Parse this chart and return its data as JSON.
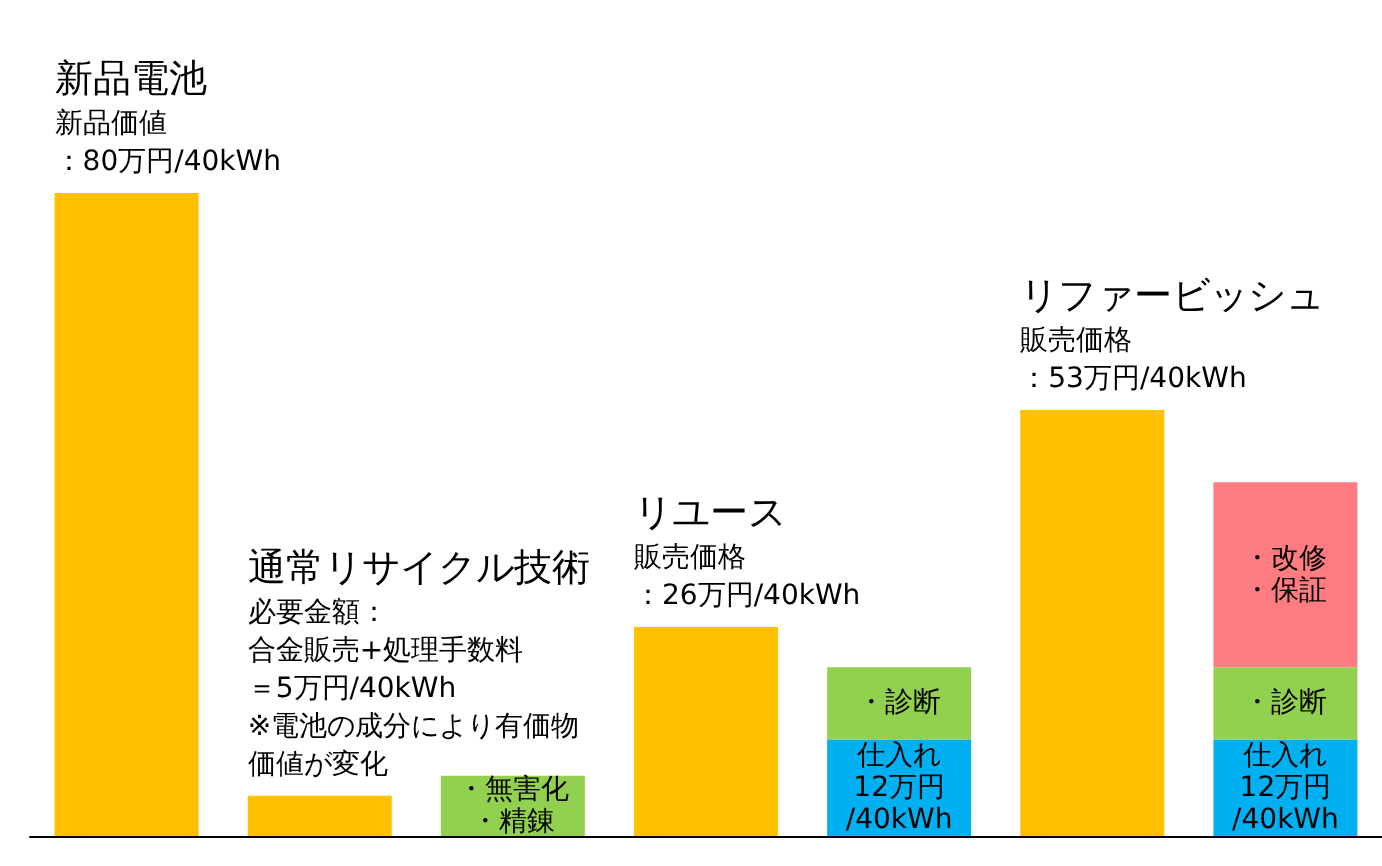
{
  "chart_data": {
    "type": "bar",
    "stacked": true,
    "categories": [
      null,
      null,
      null,
      null,
      null,
      null,
      null
    ],
    "annotations": [
      {
        "text": "新品電池",
        "y": 80
      },
      {
        "text": "新品価値",
        "y": 80
      },
      {
        "text": "：80万円/40kWh",
        "y": 80
      },
      "通常リサイクル技術",
      "必要金額：",
      "合金販売+処理手数料",
      "＝5万円/40kWh",
      "※電池の成分により有価物",
      "価値が変化",
      {
        "text": "リユース",
        "y": 26
      },
      {
        "text": "販売価格",
        "y": 26
      },
      {
        "text": "：26万円/40kWh",
        "y": 26
      },
      {
        "text": "リファービッシュ",
        "y": 53
      },
      {
        "text": "販売価格",
        "y": 53
      },
      {
        "text": "：53万円/40kWh",
        "y": 53
      }
    ],
    "series": [
      {
        "color": "#ffc000",
        "values": [
          80,
          5,
          null,
          26,
          null,
          53,
          null
        ]
      },
      {
        "color": "#00b0f0",
        "values": [
          null,
          null,
          null,
          null,
          12,
          null,
          12
        ],
        "value_labels": [
          null,
          null,
          null,
          null,
          "仕入れ\n12万円\n/40kWh",
          null,
          "仕入れ\n12万円\n/40kWh"
        ]
      },
      {
        "color": "#92d050",
        "values": [
          null,
          null,
          7.5,
          null,
          9,
          null,
          9
        ],
        "value_labels": [
          null,
          null,
          "・無害化・精錬",
          null,
          "・診断",
          null,
          "・診断"
        ]
      },
      {
        "color": "#ff7c80",
        "values": [
          null,
          null,
          null,
          null,
          null,
          null,
          23
        ],
        "value_labels": [
          null,
          null,
          null,
          null,
          null,
          null,
          "・改修・保証"
        ]
      }
    ]
  }
}
